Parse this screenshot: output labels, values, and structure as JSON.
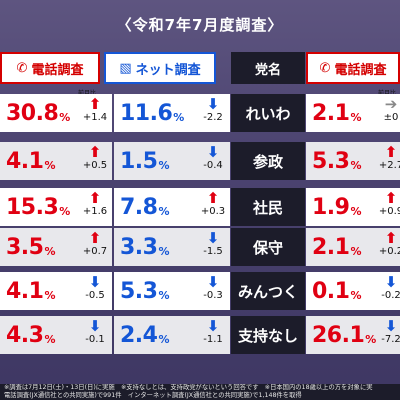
{
  "title": "〈令和7年7月度調査〉",
  "headers": {
    "phone": "電話調査",
    "internet": "ネット調査",
    "party": "党名",
    "phone2": "電話調査",
    "prev_label": "前月比"
  },
  "rows": [
    {
      "party": "れいわ",
      "phone": "30.8",
      "phone_chg": "+1.4",
      "phone_dir": "up",
      "net": "11.6",
      "net_chg": "-2.2",
      "net_dir": "down",
      "phone2": "2.1",
      "phone2_chg": "±0",
      "phone2_dir": "flat"
    },
    {
      "party": "参政",
      "phone": "4.1",
      "phone_chg": "+0.5",
      "phone_dir": "up",
      "net": "1.5",
      "net_chg": "-0.4",
      "net_dir": "down",
      "phone2": "5.3",
      "phone2_chg": "+2.7",
      "phone2_dir": "up"
    },
    {
      "party": "社民",
      "phone": "15.3",
      "phone_chg": "+1.6",
      "phone_dir": "up",
      "net": "7.8",
      "net_chg": "+0.3",
      "net_dir": "up",
      "phone2": "1.9",
      "phone2_chg": "+0.9",
      "phone2_dir": "up"
    },
    {
      "party": "保守",
      "phone": "3.5",
      "phone_chg": "+0.7",
      "phone_dir": "up",
      "net": "3.3",
      "net_chg": "-1.5",
      "net_dir": "down",
      "phone2": "2.1",
      "phone2_chg": "+0.2",
      "phone2_dir": "up"
    },
    {
      "party": "みんつく",
      "phone": "4.1",
      "phone_chg": "-0.5",
      "phone_dir": "down",
      "net": "5.3",
      "net_chg": "-0.3",
      "net_dir": "down",
      "phone2": "0.1",
      "phone2_chg": "-0.2",
      "phone2_dir": "down"
    },
    {
      "party": "支持なし",
      "phone": "4.3",
      "phone_chg": "-0.1",
      "phone_dir": "down",
      "net": "2.4",
      "net_chg": "-1.1",
      "net_dir": "down",
      "phone2": "26.1",
      "phone2_chg": "-7.2",
      "phone2_dir": "down"
    }
  ],
  "percent": "%",
  "footer": {
    "line1": "※調査は7月12日(土)・13日(日)に実施　※支持なしとは、支持政党がないという回答です　※日本国内の18歳以上の方を対象に実",
    "line2": "電話調査(JX通信社との共同実施)で991件　インターネット調査(JX通信社との共同実施)で1,148件を取得"
  },
  "icons": {
    "phone": "phone-icon",
    "mobile": "mobile-icon"
  },
  "colors": {
    "red": "#e00012",
    "blue": "#1456d6",
    "dark": "#1c1c2a"
  }
}
